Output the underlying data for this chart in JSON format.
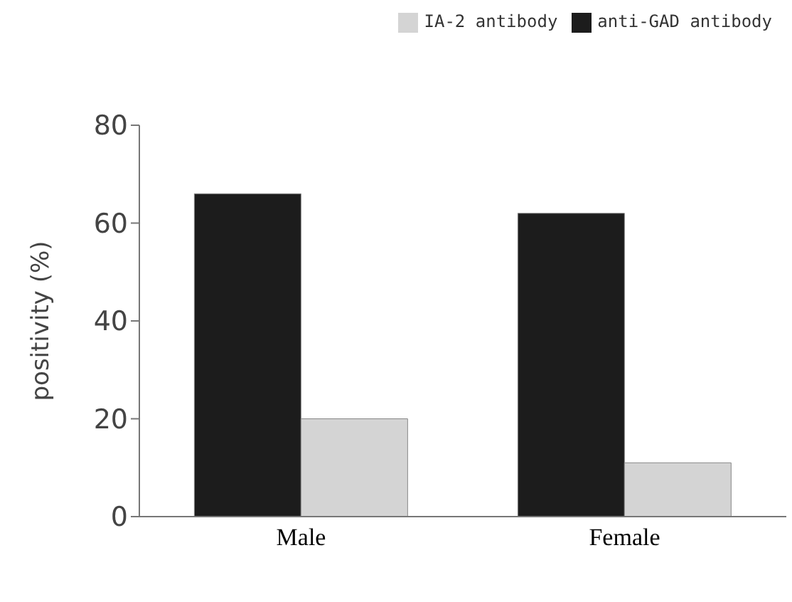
{
  "chart_data": {
    "type": "bar",
    "ylabel": "positivity (%)",
    "categories": [
      "Male",
      "Female"
    ],
    "series": [
      {
        "name": "anti-GAD antibody",
        "color": "#1c1c1c",
        "values": [
          66,
          62
        ]
      },
      {
        "name": "IA-2 antibody",
        "color": "#d4d4d4",
        "values": [
          20,
          11
        ]
      }
    ],
    "ylim": [
      0,
      80
    ],
    "yticks": [
      0,
      20,
      40,
      60,
      80
    ],
    "grid": false,
    "legend": "top right"
  }
}
